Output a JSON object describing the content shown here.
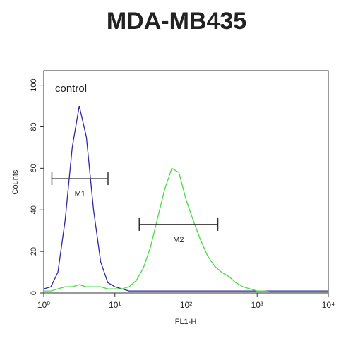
{
  "chart_data": {
    "type": "line",
    "title": "MDA-MB435",
    "annotation": "control",
    "x_label": "FL1-H",
    "y_label": "Counts",
    "log_x": true,
    "x": [
      1,
      1.26,
      1.58,
      2,
      2.51,
      3.16,
      3.98,
      5.01,
      6.31,
      7.94,
      10,
      12.6,
      15.8,
      20,
      25.1,
      31.6,
      39.8,
      50.1,
      63.1,
      79.4,
      100,
      126,
      158,
      200,
      251,
      316,
      398,
      501,
      631,
      794,
      1000,
      1260,
      1580,
      2000,
      2510,
      3160,
      3980,
      5010,
      6310,
      7940,
      10000
    ],
    "series": [
      {
        "name": "control",
        "color": "#2a2aa8",
        "values": [
          2,
          3,
          10,
          35,
          70,
          90,
          75,
          40,
          15,
          5,
          3,
          2,
          1,
          1,
          1,
          1,
          1,
          1,
          1,
          1,
          1,
          1,
          1,
          1,
          1,
          1,
          1,
          1,
          1,
          1,
          1,
          1,
          1,
          1,
          1,
          1,
          1,
          1,
          1,
          1,
          1
        ]
      },
      {
        "color": "#44dd44",
        "values": [
          1,
          1,
          2,
          3,
          3,
          4,
          3,
          3,
          3,
          2,
          2,
          2,
          3,
          6,
          12,
          22,
          36,
          50,
          60,
          58,
          45,
          35,
          26,
          18,
          13,
          10,
          8,
          5,
          3,
          2,
          1,
          1,
          0.5,
          0.5,
          0.5,
          0.5,
          0.5,
          0.5,
          0.5,
          0.5,
          0.5
        ]
      }
    ],
    "gates": [
      {
        "label": "M1",
        "x": [
          1.3,
          8
        ],
        "y": 55
      },
      {
        "label": "M2",
        "x": [
          22,
          280
        ],
        "y": 33
      }
    ],
    "xlim": [
      1,
      10000
    ],
    "xticks": [
      {
        "value": 1,
        "label": "10⁰"
      },
      {
        "value": 10,
        "label": "10¹"
      },
      {
        "value": 100,
        "label": "10²"
      },
      {
        "value": 1000,
        "label": "10³"
      },
      {
        "value": 10000,
        "label": "10⁴"
      }
    ],
    "ylim": [
      0,
      107
    ],
    "yticks": [
      0,
      20,
      40,
      60,
      80,
      100
    ]
  }
}
